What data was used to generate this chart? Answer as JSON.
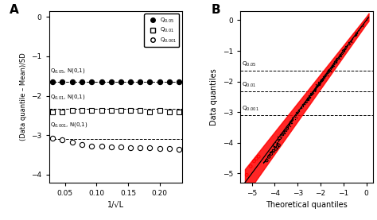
{
  "panel_A": {
    "title": "A",
    "xlabel": "1/√L",
    "ylabel": "(Data quantile – Mean)/SD",
    "xlim": [
      0.025,
      0.235
    ],
    "ylim": [
      -4.2,
      0.15
    ],
    "xticks": [
      0.05,
      0.1,
      0.15,
      0.2
    ],
    "yticks": [
      0,
      -1,
      -2,
      -3,
      -4
    ],
    "series": [
      {
        "x": [
          0.031,
          0.046,
          0.062,
          0.077,
          0.092,
          0.108,
          0.123,
          0.138,
          0.154,
          0.169,
          0.184,
          0.2,
          0.215,
          0.23
        ],
        "y": [
          -1.65,
          -1.65,
          -1.65,
          -1.65,
          -1.65,
          -1.65,
          -1.65,
          -1.65,
          -1.65,
          -1.65,
          -1.65,
          -1.65,
          -1.65,
          -1.65
        ],
        "hline": -1.645,
        "marker": "o",
        "fillstyle": "full",
        "annotation": "Q$_{0.05}$, N(0,1)",
        "ann_x": 0.027,
        "ann_y": -1.47,
        "label": "Q$_{0.05}$"
      },
      {
        "x": [
          0.031,
          0.046,
          0.062,
          0.077,
          0.092,
          0.108,
          0.123,
          0.138,
          0.154,
          0.169,
          0.184,
          0.2,
          0.215,
          0.23
        ],
        "y": [
          -2.4,
          -2.4,
          -2.37,
          -2.37,
          -2.37,
          -2.37,
          -2.37,
          -2.37,
          -2.37,
          -2.37,
          -2.4,
          -2.37,
          -2.4,
          -2.4
        ],
        "hline": -2.326,
        "marker": "s",
        "fillstyle": "none",
        "annotation": "Q$_{0.01}$, N(0,1)",
        "ann_x": 0.027,
        "ann_y": -2.12,
        "label": "Q$_{0.01}$"
      },
      {
        "x": [
          0.031,
          0.046,
          0.062,
          0.077,
          0.092,
          0.108,
          0.123,
          0.138,
          0.154,
          0.169,
          0.184,
          0.2,
          0.215,
          0.23
        ],
        "y": [
          -3.08,
          -3.12,
          -3.18,
          -3.24,
          -3.28,
          -3.28,
          -3.3,
          -3.3,
          -3.32,
          -3.32,
          -3.32,
          -3.33,
          -3.33,
          -3.35
        ],
        "hline": -3.09,
        "marker": "o",
        "fillstyle": "none",
        "annotation": "Q$_{0.001}$, N(0,1)",
        "ann_x": 0.027,
        "ann_y": -2.84,
        "label": "Q$_{0.001}$"
      }
    ]
  },
  "panel_B": {
    "title": "B",
    "xlabel": "Theoretical quantiles",
    "ylabel": "Data quantiles",
    "xlim": [
      -5.5,
      0.3
    ],
    "ylim": [
      -5.3,
      0.3
    ],
    "xticks": [
      -5,
      -4,
      -3,
      -2,
      -1,
      0
    ],
    "yticks": [
      0,
      -1,
      -2,
      -3,
      -4,
      -5
    ],
    "hlines": [
      {
        "y": -1.645,
        "label": "Q$_{0.05}$"
      },
      {
        "y": -2.326,
        "label": "Q$_{0.01}$"
      },
      {
        "y": -3.09,
        "label": "Q$_{0.001}$"
      }
    ],
    "outliers_black_x": [
      -4.35,
      -4.25,
      -4.15,
      -4.05,
      -3.95,
      -3.88,
      -3.82
    ],
    "outliers_black_y": [
      -4.58,
      -4.46,
      -4.36,
      -4.27,
      -4.2,
      -4.13,
      -4.08
    ],
    "outliers_red_x": [
      -5.22,
      -5.05,
      -4.9,
      -4.8,
      -4.7
    ],
    "outliers_red_y": [
      -5.05,
      -4.77,
      -4.6,
      -4.52,
      -4.45
    ]
  }
}
